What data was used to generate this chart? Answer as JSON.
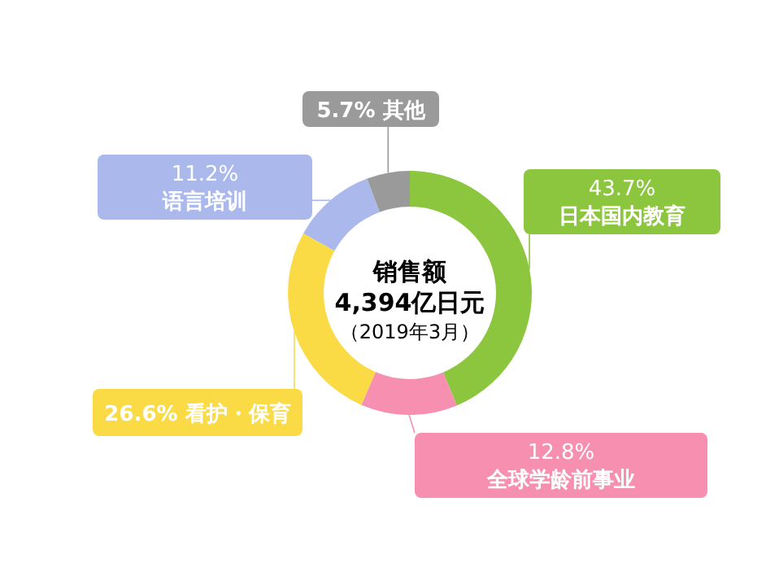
{
  "chart_data": {
    "type": "donut",
    "title": "销售额",
    "subtitle": "4,394亿日元",
    "annotations": [
      "（2019年3月）"
    ],
    "categories": [
      "日本国内教育",
      "全球学龄前事业",
      "看护・保育",
      "语言培训",
      "其他"
    ],
    "values": [
      43.7,
      12.8,
      26.6,
      11.2,
      5.7
    ],
    "value_labels": [
      "43.7%",
      "12.8%",
      "26.6%",
      "11.2%",
      "5.7%"
    ],
    "colors": [
      "#8cc63f",
      "#f78fb0",
      "#fbdb45",
      "#aab8ec",
      "#9a9a9a"
    ]
  }
}
